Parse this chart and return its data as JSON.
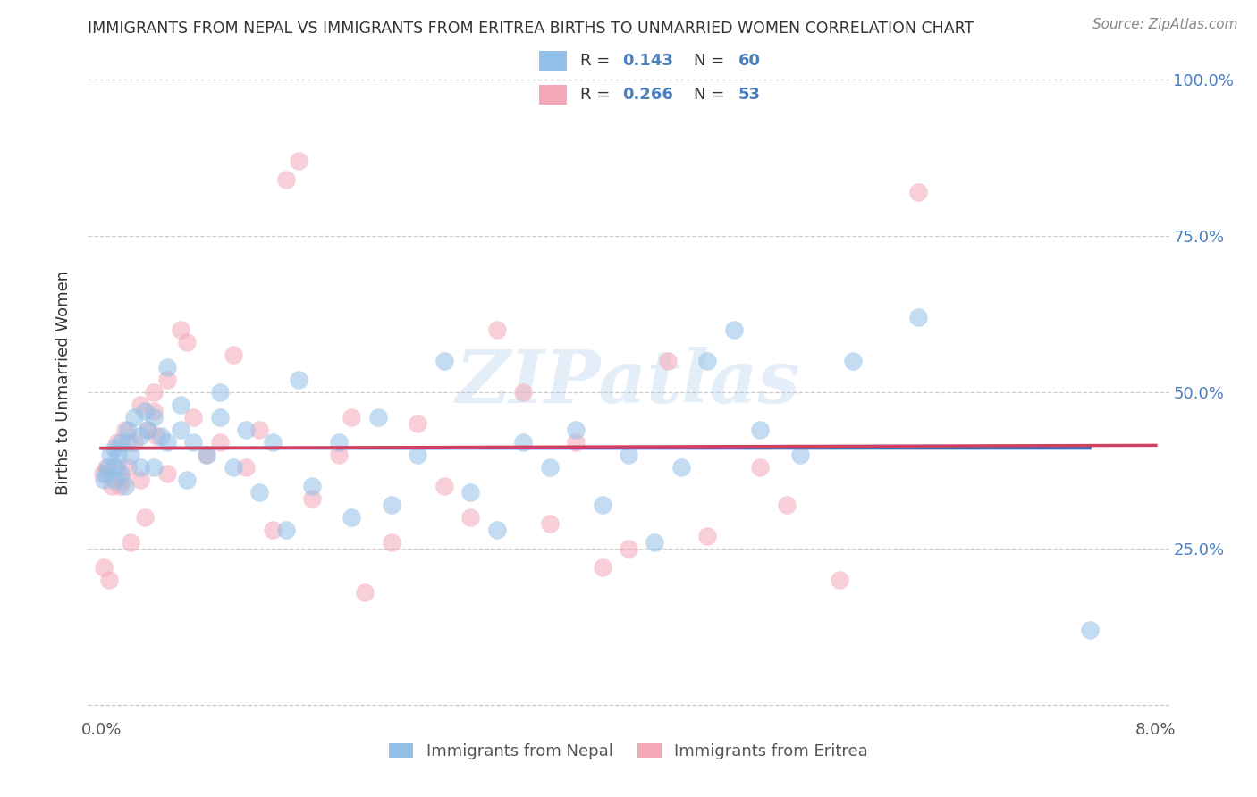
{
  "title": "IMMIGRANTS FROM NEPAL VS IMMIGRANTS FROM ERITREA BIRTHS TO UNMARRIED WOMEN CORRELATION CHART",
  "source": "Source: ZipAtlas.com",
  "ylabel_label": "Births to Unmarried Women",
  "nepal_color": "#92c0e8",
  "eritrea_color": "#f4a8b8",
  "nepal_R": 0.143,
  "nepal_N": 60,
  "eritrea_R": 0.266,
  "eritrea_N": 53,
  "legend_label_nepal": "Immigrants from Nepal",
  "legend_label_eritrea": "Immigrants from Eritrea",
  "nepal_line_color": "#3a72b8",
  "eritrea_line_color": "#d04060",
  "text_color_dark": "#333333",
  "text_color_blue": "#4a7fc0",
  "tick_color": "#555555",
  "grid_color": "#cccccc",
  "background_color": "#ffffff",
  "watermark": "ZIPatlas",
  "nepal_x": [
    0.0002,
    0.0003,
    0.0005,
    0.0007,
    0.001,
    0.001,
    0.0012,
    0.0013,
    0.0015,
    0.0015,
    0.0018,
    0.002,
    0.002,
    0.0022,
    0.0025,
    0.003,
    0.003,
    0.0033,
    0.0035,
    0.004,
    0.004,
    0.0045,
    0.005,
    0.005,
    0.006,
    0.006,
    0.0065,
    0.007,
    0.008,
    0.009,
    0.009,
    0.01,
    0.011,
    0.012,
    0.013,
    0.014,
    0.015,
    0.016,
    0.018,
    0.019,
    0.021,
    0.022,
    0.024,
    0.026,
    0.028,
    0.03,
    0.032,
    0.034,
    0.036,
    0.038,
    0.04,
    0.042,
    0.044,
    0.046,
    0.048,
    0.05,
    0.053,
    0.057,
    0.062,
    0.075
  ],
  "nepal_y": [
    0.36,
    0.37,
    0.38,
    0.4,
    0.36,
    0.41,
    0.38,
    0.4,
    0.37,
    0.42,
    0.35,
    0.42,
    0.44,
    0.4,
    0.46,
    0.38,
    0.43,
    0.47,
    0.44,
    0.38,
    0.46,
    0.43,
    0.42,
    0.54,
    0.44,
    0.48,
    0.36,
    0.42,
    0.4,
    0.46,
    0.5,
    0.38,
    0.44,
    0.34,
    0.42,
    0.28,
    0.52,
    0.35,
    0.42,
    0.3,
    0.46,
    0.32,
    0.4,
    0.55,
    0.34,
    0.28,
    0.42,
    0.38,
    0.44,
    0.32,
    0.4,
    0.26,
    0.38,
    0.55,
    0.6,
    0.44,
    0.4,
    0.55,
    0.62,
    0.12
  ],
  "eritrea_x": [
    0.0001,
    0.0002,
    0.0004,
    0.0006,
    0.0008,
    0.001,
    0.0012,
    0.0014,
    0.0016,
    0.0018,
    0.002,
    0.0022,
    0.0025,
    0.003,
    0.003,
    0.0033,
    0.0035,
    0.004,
    0.004,
    0.0042,
    0.005,
    0.005,
    0.006,
    0.0065,
    0.007,
    0.008,
    0.009,
    0.01,
    0.011,
    0.012,
    0.013,
    0.014,
    0.015,
    0.016,
    0.018,
    0.019,
    0.02,
    0.022,
    0.024,
    0.026,
    0.028,
    0.03,
    0.032,
    0.034,
    0.036,
    0.038,
    0.04,
    0.043,
    0.046,
    0.05,
    0.052,
    0.056,
    0.062
  ],
  "eritrea_y": [
    0.37,
    0.22,
    0.38,
    0.2,
    0.35,
    0.38,
    0.42,
    0.35,
    0.36,
    0.44,
    0.38,
    0.26,
    0.42,
    0.48,
    0.36,
    0.3,
    0.44,
    0.5,
    0.47,
    0.43,
    0.52,
    0.37,
    0.6,
    0.58,
    0.46,
    0.4,
    0.42,
    0.56,
    0.38,
    0.44,
    0.28,
    0.84,
    0.87,
    0.33,
    0.4,
    0.46,
    0.18,
    0.26,
    0.45,
    0.35,
    0.3,
    0.6,
    0.5,
    0.29,
    0.42,
    0.22,
    0.25,
    0.55,
    0.27,
    0.38,
    0.32,
    0.2,
    0.82
  ],
  "xlim": [
    0.0,
    0.08
  ],
  "ylim": [
    0.0,
    1.0
  ],
  "x_ticks": [
    0.0,
    0.01,
    0.02,
    0.03,
    0.04,
    0.05,
    0.06,
    0.07,
    0.08
  ],
  "y_ticks": [
    0.0,
    0.25,
    0.5,
    0.75,
    1.0
  ]
}
